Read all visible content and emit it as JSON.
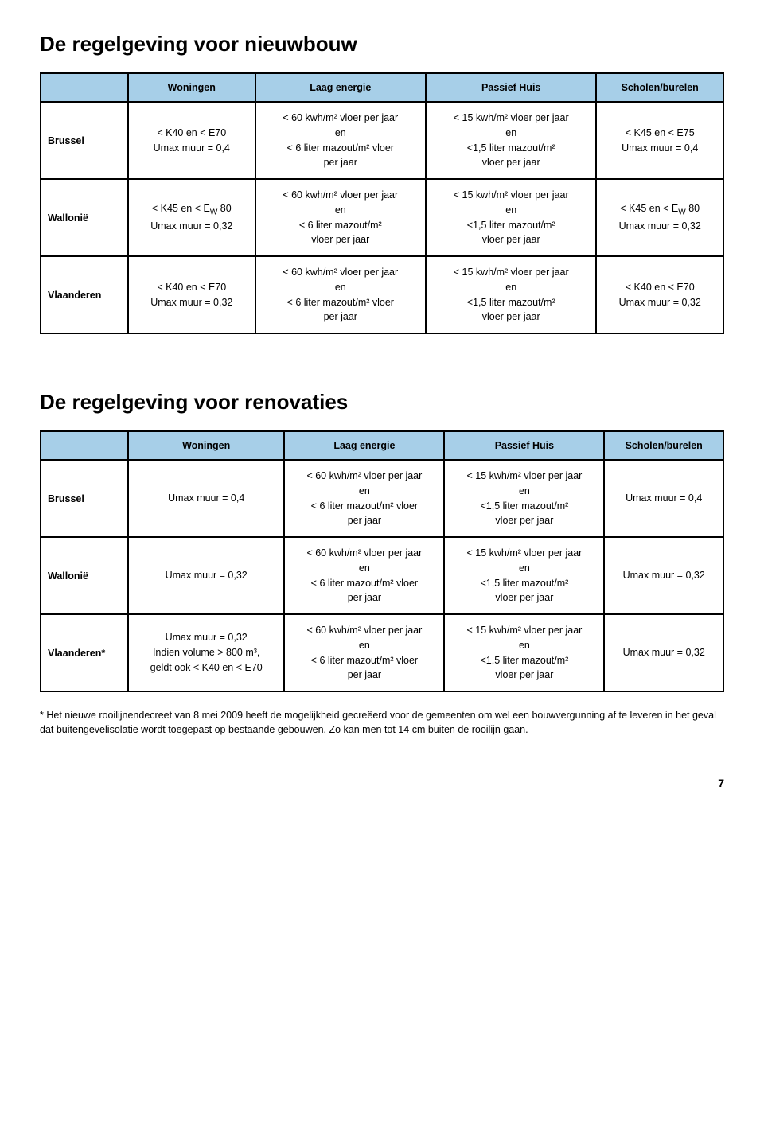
{
  "page_number": "7",
  "colors": {
    "header_bg": "#a7cfe8",
    "border": "#000000",
    "text": "#000000",
    "background": "#ffffff"
  },
  "section1": {
    "title": "De regelgeving voor nieuwbouw",
    "headers": [
      "Woningen",
      "Laag energie",
      "Passief Huis",
      "Scholen/burelen"
    ],
    "rows": [
      {
        "label": "Brussel",
        "c1": "< K40 en < E70\nUmax muur = 0,4",
        "c2": "< 60 kwh/m² vloer per jaar\nen\n< 6 liter mazout/m² vloer\nper jaar",
        "c3": "< 15 kwh/m² vloer per jaar\nen\n<1,5 liter mazout/m²\nvloer per jaar",
        "c4": "< K45 en < E75\nUmax muur = 0,4"
      },
      {
        "label": "Wallonië",
        "c1": "< K45 en < E_W 80\nUmax muur = 0,32",
        "c2": "< 60 kwh/m² vloer per jaar\nen\n< 6 liter mazout/m²\nvloer per jaar",
        "c3": "< 15 kwh/m² vloer per jaar\nen\n<1,5 liter mazout/m²\nvloer per jaar",
        "c4": "< K45 en < E_W 80\nUmax muur = 0,32"
      },
      {
        "label": "Vlaanderen",
        "c1": "< K40 en < E70\nUmax muur = 0,32",
        "c2": "< 60 kwh/m² vloer per jaar\nen\n< 6 liter mazout/m² vloer\nper jaar",
        "c3": "< 15 kwh/m² vloer per jaar\nen\n<1,5 liter mazout/m²\nvloer per jaar",
        "c4": "< K40 en < E70\nUmax muur = 0,32"
      }
    ]
  },
  "section2": {
    "title": "De regelgeving voor renovaties",
    "headers": [
      "Woningen",
      "Laag energie",
      "Passief Huis",
      "Scholen/burelen"
    ],
    "rows": [
      {
        "label": "Brussel",
        "c1": "Umax muur = 0,4",
        "c2": "< 60 kwh/m² vloer per jaar\nen\n< 6 liter mazout/m² vloer\nper jaar",
        "c3": "< 15 kwh/m² vloer per jaar\nen\n<1,5 liter mazout/m²\nvloer per jaar",
        "c4": "Umax muur = 0,4"
      },
      {
        "label": "Wallonië",
        "c1": "Umax muur = 0,32",
        "c2": "< 60 kwh/m² vloer per jaar\nen\n< 6 liter mazout/m² vloer\nper jaar",
        "c3": "< 15 kwh/m² vloer per jaar\nen\n<1,5 liter mazout/m²\nvloer per jaar",
        "c4": "Umax muur = 0,32"
      },
      {
        "label": "Vlaanderen*",
        "c1": "Umax muur = 0,32\nIndien volume > 800 m³,\ngeldt ook < K40 en < E70",
        "c2": "< 60 kwh/m² vloer per jaar\nen\n< 6 liter mazout/m² vloer\nper jaar",
        "c3": "< 15 kwh/m² vloer per jaar\nen\n<1,5 liter mazout/m²\nvloer per jaar",
        "c4": "Umax muur = 0,32"
      }
    ],
    "footnote": "* Het nieuwe rooilijnendecreet van 8 mei 2009 heeft de mogelijkheid gecreëerd voor de gemeenten om wel een bouwvergunning af te leveren in het geval dat buitengevelisolatie wordt toegepast op bestaande gebouwen. Zo kan men tot 14 cm buiten de rooilijn gaan."
  }
}
